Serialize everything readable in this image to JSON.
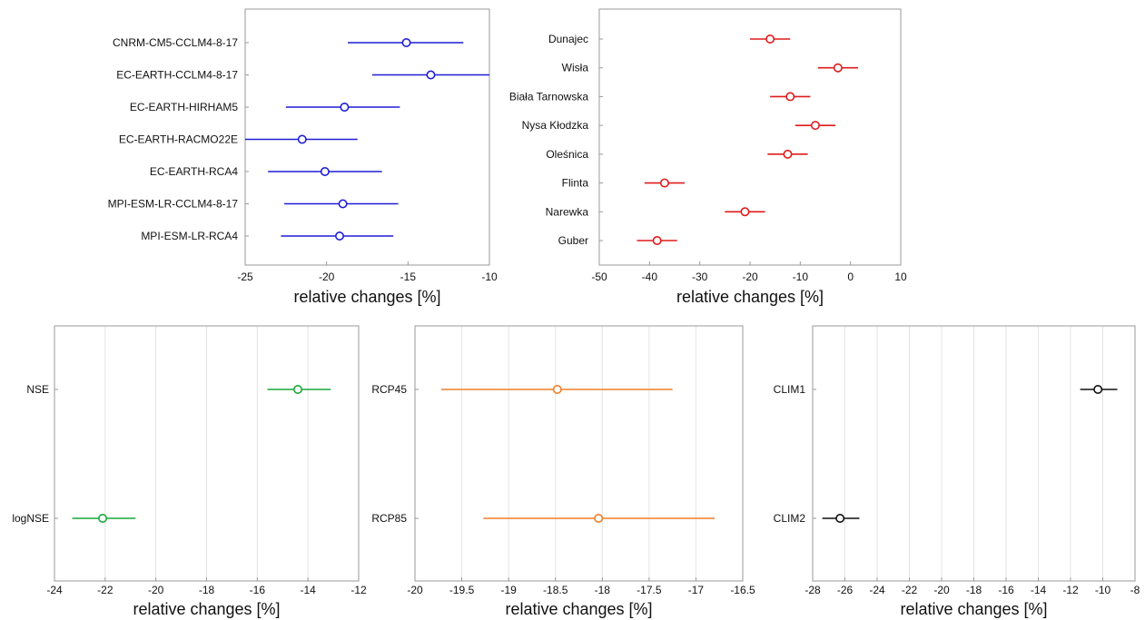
{
  "chart_data": [
    {
      "type": "errorbar",
      "xlabel": "relative changes [%]",
      "xlim": [
        -25,
        -10
      ],
      "xticks": [
        -25,
        -20,
        -15,
        -10
      ],
      "grid": false,
      "color": "#1f1fd6",
      "categories": [
        "CNRM-CM5-CCLM4-8-17",
        "EC-EARTH-CCLM4-8-17",
        "EC-EARTH-HIRHAM5",
        "EC-EARTH-RACMO22E",
        "EC-EARTH-RCA4",
        "MPI-ESM-LR-CCLM4-8-17",
        "MPI-ESM-LR-RCA4"
      ],
      "values": [
        -15.1,
        -13.6,
        -18.9,
        -21.5,
        -20.1,
        -19.0,
        -19.2
      ],
      "lower": [
        -18.7,
        -17.2,
        -22.5,
        -25.0,
        -23.6,
        -22.6,
        -22.8
      ],
      "upper": [
        -11.6,
        -10.0,
        -15.5,
        -18.1,
        -16.6,
        -15.6,
        -15.9
      ]
    },
    {
      "type": "errorbar",
      "xlabel": "relative changes [%]",
      "xlim": [
        -50,
        10
      ],
      "xticks": [
        -50,
        -40,
        -30,
        -20,
        -10,
        0,
        10
      ],
      "grid": false,
      "color": "#e01b1b",
      "categories": [
        "Dunajec",
        "Wisła",
        "Biała Tarnowska",
        "Nysa Kłodzka",
        "Oleśnica",
        "Flinta",
        "Narewka",
        "Guber"
      ],
      "values": [
        -16,
        -2.5,
        -12,
        -7,
        -12.5,
        -37,
        -21,
        -38.5
      ],
      "lower": [
        -20,
        -6.5,
        -16,
        -11,
        -16.5,
        -41,
        -25,
        -42.5
      ],
      "upper": [
        -12,
        1.5,
        -8,
        -3,
        -8.5,
        -33,
        -17,
        -34.5
      ]
    },
    {
      "type": "errorbar",
      "xlabel": "relative changes [%]",
      "xlim": [
        -24,
        -12
      ],
      "xticks": [
        -24,
        -22,
        -20,
        -18,
        -16,
        -14,
        -12
      ],
      "grid": true,
      "color": "#1aa83a",
      "categories": [
        "NSE",
        "logNSE"
      ],
      "values": [
        -14.4,
        -22.1
      ],
      "lower": [
        -15.6,
        -23.3
      ],
      "upper": [
        -13.1,
        -20.8
      ]
    },
    {
      "type": "errorbar",
      "xlabel": "relative changes [%]",
      "xlim": [
        -20,
        -16.5
      ],
      "xticks": [
        -20,
        -19.5,
        -19,
        -18.5,
        -18,
        -17.5,
        -17,
        -16.5
      ],
      "grid": true,
      "color": "#f07f2a",
      "categories": [
        "RCP45",
        "RCP85"
      ],
      "values": [
        -18.48,
        -18.04
      ],
      "lower": [
        -19.72,
        -19.27
      ],
      "upper": [
        -17.25,
        -16.8
      ]
    },
    {
      "type": "errorbar",
      "xlabel": "relative changes [%]",
      "xlim": [
        -28,
        -8
      ],
      "xticks": [
        -28,
        -26,
        -24,
        -22,
        -20,
        -18,
        -16,
        -14,
        -12,
        -10,
        -8
      ],
      "grid": true,
      "color": "#111111",
      "categories": [
        "CLIM1",
        "CLIM2"
      ],
      "values": [
        -10.3,
        -26.3
      ],
      "lower": [
        -11.4,
        -27.4
      ],
      "upper": [
        -9.1,
        -25.1
      ]
    }
  ]
}
